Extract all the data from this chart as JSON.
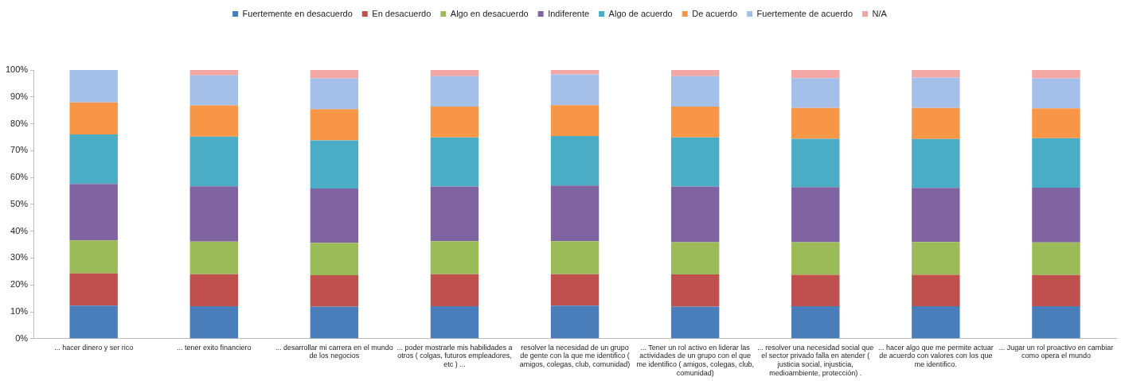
{
  "chart_data": {
    "type": "bar",
    "stacked": true,
    "legend": "top",
    "grid": false,
    "categories": [
      "... hacer dinero y ser rico",
      "... tener exito financiero",
      "... desarrollar mi carrera en el mundo de los negocios",
      "... poder mostrarle mis habilidades a otros ( colgas, futuros empleadores, etc ) ...",
      "resolver la necesidad de un grupo de gente con la que me identifico ( amigos, colegas, club, comunidad)",
      "... Tener un rol activo en liderar las actividades de un grupo con el que me identifico ( amigos, colegas, club, comunidad)",
      "... resolver una necesidad social que el sector privado falla en atender ( justicia social, injusticia, medioambiente, protección) .",
      "... hacer algo que me permite actuar de acuerdo con valores con los que me identifico.",
      "... Jugar un rol proactivo en cambiar como opera el mundo"
    ],
    "ylim": [
      0,
      100
    ],
    "yticks": [
      {
        "value": 0,
        "label": "0%"
      },
      {
        "value": 10,
        "label": "10%"
      },
      {
        "value": 20,
        "label": "20%"
      },
      {
        "value": 30,
        "label": "30%"
      },
      {
        "value": 40,
        "label": "40%"
      },
      {
        "value": 50,
        "label": "50%"
      },
      {
        "value": 60,
        "label": "60%"
      },
      {
        "value": 70,
        "label": "70%"
      },
      {
        "value": 80,
        "label": "80%"
      },
      {
        "value": 90,
        "label": "90%"
      },
      {
        "value": 100,
        "label": "100%"
      }
    ],
    "series": [
      {
        "name": "Fuertemente en desacuerdo",
        "color": "#4a7ebb",
        "values": [
          12.3,
          12.1,
          11.9,
          12.1,
          12.3,
          11.9,
          12.1,
          12.1,
          12.1
        ]
      },
      {
        "name": "En desacuerdo",
        "color": "#c0504d",
        "values": [
          12.0,
          11.9,
          11.7,
          11.9,
          11.7,
          12.0,
          11.7,
          11.7,
          11.6
        ]
      },
      {
        "name": "Algo en desacuerdo",
        "color": "#9bbb59",
        "values": [
          12.3,
          12.1,
          12.1,
          12.3,
          12.3,
          12.0,
          12.1,
          12.2,
          12.1
        ]
      },
      {
        "name": "Indiferente",
        "color": "#8064a2",
        "values": [
          21.0,
          20.6,
          20.2,
          20.3,
          20.7,
          20.7,
          20.5,
          20.1,
          20.4
        ]
      },
      {
        "name": "Algo de acuerdo",
        "color": "#4bacc6",
        "values": [
          18.4,
          18.5,
          17.9,
          18.3,
          18.4,
          18.3,
          18.0,
          18.2,
          18.4
        ]
      },
      {
        "name": "De acuerdo",
        "color": "#f79646",
        "values": [
          11.9,
          11.6,
          11.6,
          11.5,
          11.5,
          11.5,
          11.5,
          11.6,
          11.1
        ]
      },
      {
        "name": "Fuertemente de acuerdo",
        "color": "#a5c0e8",
        "values": [
          12.1,
          11.2,
          11.5,
          11.3,
          11.5,
          11.3,
          11.1,
          11.3,
          11.2
        ]
      },
      {
        "name": "N/A",
        "color": "#f2a7a5",
        "values": [
          0,
          2.0,
          3.1,
          2.3,
          1.6,
          2.3,
          3.0,
          2.8,
          3.1
        ]
      }
    ]
  }
}
